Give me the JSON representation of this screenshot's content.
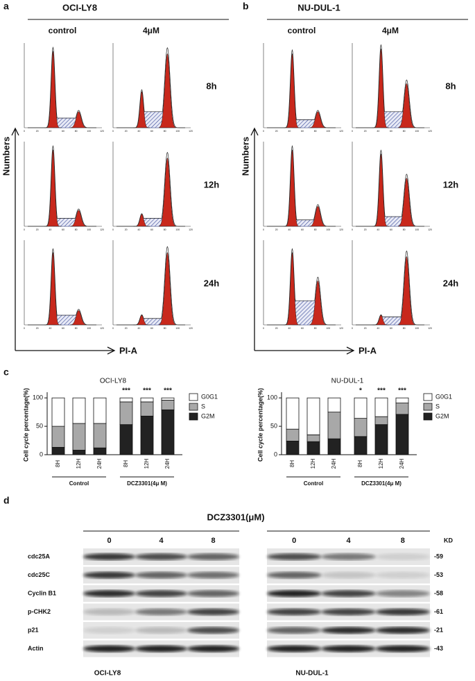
{
  "panel_ab": [
    {
      "label": "a",
      "title": "OCI-LY8"
    },
    {
      "label": "b",
      "title": "NU-DUL-1"
    }
  ],
  "conditions": [
    "control",
    "4μM"
  ],
  "times": [
    "8h",
    "12h",
    "24h"
  ],
  "y_axis_label": "Numbers",
  "x_axis_label": "PI-A",
  "histogram_xticks": [
    0,
    20,
    40,
    60,
    80,
    100,
    120
  ],
  "panel_c_label": "c",
  "chart_data": [
    {
      "type": "bar",
      "stacked": true,
      "title": "OCI-LY8",
      "ylabel": "Cell cycle percentage(%)",
      "categories": [
        "8H",
        "12H",
        "24H",
        "8H",
        "12H",
        "24H"
      ],
      "groups": [
        "Control",
        "DCZ3301(4μ M)"
      ],
      "annotations": [
        null,
        null,
        null,
        "***",
        "***",
        "***"
      ],
      "ylim": [
        0,
        110
      ],
      "yticks": [
        0,
        50,
        100
      ],
      "series": [
        {
          "name": "G2M",
          "color": "#222222",
          "values": [
            13,
            8,
            12,
            53,
            68,
            79
          ]
        },
        {
          "name": "S",
          "color": "#a8a8a8",
          "values": [
            37,
            47,
            43,
            40,
            25,
            17
          ]
        },
        {
          "name": "G0G1",
          "color": "#ffffff",
          "values": [
            50,
            45,
            45,
            7,
            7,
            4
          ]
        }
      ]
    },
    {
      "type": "bar",
      "stacked": true,
      "title": "NU-DUL-1",
      "ylabel": "Cell cycle percentage(%)",
      "categories": [
        "8H",
        "12H",
        "24H",
        "8H",
        "12H",
        "24H"
      ],
      "groups": [
        "Control",
        "DCZ3301(4μ M)"
      ],
      "annotations": [
        null,
        null,
        null,
        "*",
        "***",
        "***"
      ],
      "ylim": [
        0,
        110
      ],
      "yticks": [
        0,
        50,
        100
      ],
      "series": [
        {
          "name": "G2M",
          "color": "#222222",
          "values": [
            24,
            23,
            28,
            32,
            53,
            71
          ]
        },
        {
          "name": "S",
          "color": "#a8a8a8",
          "values": [
            21,
            12,
            47,
            32,
            14,
            20
          ]
        },
        {
          "name": "G0G1",
          "color": "#ffffff",
          "values": [
            55,
            65,
            25,
            36,
            33,
            9
          ]
        }
      ]
    }
  ],
  "western": {
    "label": "d",
    "treatment": "DCZ3301(μM)",
    "doses": [
      0,
      4,
      8
    ],
    "kd_header": "KD",
    "proteins": [
      "cdc25A",
      "cdc25C",
      "Cyclin B1",
      "p-CHK2",
      "p21",
      "Actin"
    ],
    "kd": [
      "-59",
      "-53",
      "-58",
      "-61",
      "-21",
      "-43"
    ],
    "cell_lines": [
      "OCI-LY8",
      "NU-DUL-1"
    ]
  }
}
